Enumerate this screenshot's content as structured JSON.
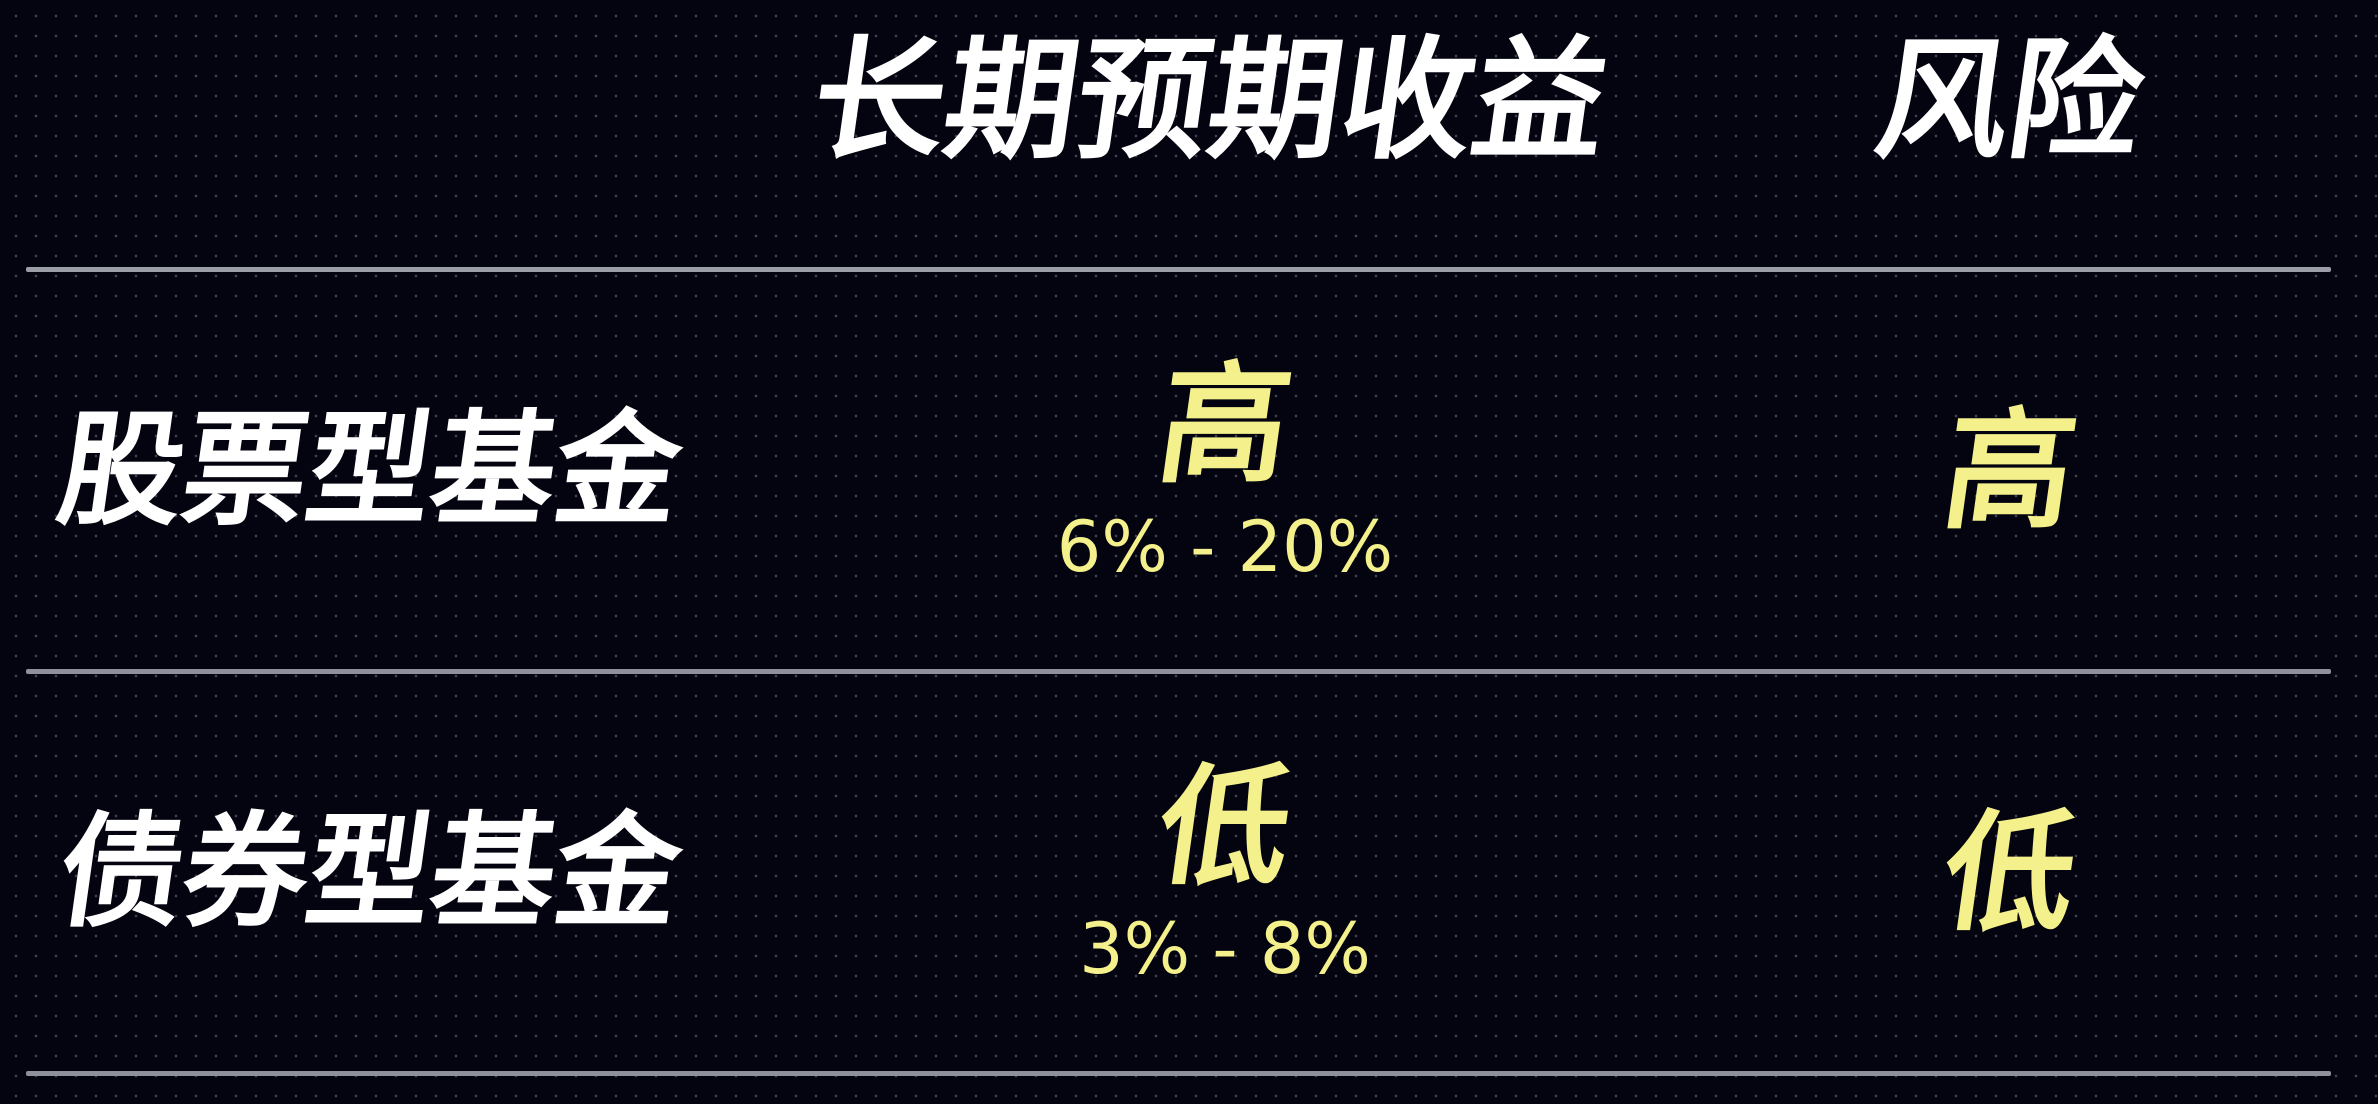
{
  "header": {
    "returns_label": "长期预期收益",
    "risk_label": "风险"
  },
  "rows": [
    {
      "fund": "股票型基金",
      "return_level": "高",
      "return_range": "6% - 20%",
      "risk_level": "高"
    },
    {
      "fund": "债券型基金",
      "return_level": "低",
      "return_range": "3% - 8%",
      "risk_level": "低"
    }
  ],
  "colors": {
    "background": "#03040f",
    "header_text": "#ffffff",
    "highlight": "#f4f08c",
    "divider": "#9b9ea6"
  }
}
